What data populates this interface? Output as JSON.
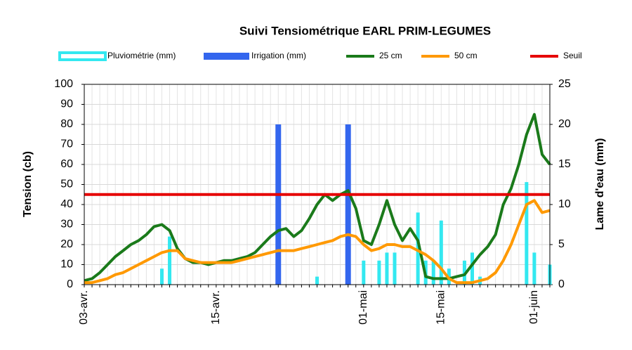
{
  "chart_data": {
    "type": "combo",
    "title": "Suivi Tensiométrique EARL PRIM-LEGUMES",
    "y_label": "Tension (cb)",
    "y2_label": "Lame d'eau (mm)",
    "categories": [
      "03-avr.",
      null,
      null,
      null,
      null,
      null,
      null,
      null,
      null,
      null,
      null,
      null,
      null,
      null,
      null,
      null,
      null,
      "15-avr.",
      null,
      null,
      null,
      null,
      null,
      null,
      null,
      null,
      null,
      null,
      null,
      null,
      null,
      null,
      null,
      null,
      null,
      null,
      "01-mai",
      null,
      null,
      null,
      null,
      null,
      null,
      null,
      null,
      null,
      "15-mai",
      null,
      null,
      null,
      null,
      null,
      null,
      null,
      null,
      null,
      null,
      null,
      "01-juin",
      null,
      null
    ],
    "ylim": [
      0,
      100
    ],
    "yticks": [
      0,
      10,
      20,
      30,
      40,
      50,
      60,
      70,
      80,
      90,
      100
    ],
    "y2lim": [
      0,
      25
    ],
    "y2ticks": [
      0,
      5,
      10,
      15,
      20,
      25
    ],
    "grid": true,
    "series": [
      {
        "name": "Pluviométrie (mm)",
        "type": "bar",
        "axis": "y2",
        "color": "#33e8f0",
        "values": [
          0,
          0,
          0,
          0,
          0,
          0,
          0,
          0,
          0,
          0,
          2,
          6,
          0,
          0,
          0,
          0,
          0,
          0,
          0,
          0,
          0,
          0,
          0,
          0,
          0,
          0,
          0,
          0,
          0,
          0,
          1,
          0,
          0,
          0,
          0,
          0,
          3,
          0,
          3,
          4,
          4,
          0,
          0,
          9,
          3,
          3,
          8,
          2,
          0,
          3,
          4,
          1,
          0,
          0,
          0,
          0,
          0,
          12.8,
          4,
          0,
          2.5
        ]
      },
      {
        "name": "Irrigation (mm)",
        "type": "bar",
        "axis": "y2",
        "color": "#3366ee",
        "values": [
          0,
          0,
          0,
          0,
          0,
          0,
          0,
          0,
          0,
          0,
          0,
          0,
          0,
          0,
          0,
          0,
          0,
          0,
          0,
          0,
          0,
          0,
          0,
          0,
          0,
          20,
          0,
          0,
          0,
          0,
          0,
          0,
          0,
          0,
          20,
          0,
          0,
          0,
          0,
          0,
          0,
          0,
          0,
          0,
          0,
          0,
          0,
          0,
          0,
          0,
          0,
          0,
          0,
          0,
          0,
          0,
          0,
          0,
          0,
          0,
          0
        ]
      },
      {
        "name": "25 cm",
        "type": "line",
        "color": "#1a7a1a",
        "values": [
          2,
          3,
          6,
          10,
          14,
          17,
          20,
          22,
          25,
          29,
          30,
          27,
          18,
          13,
          11,
          11,
          10,
          11,
          12,
          12,
          13,
          14,
          16,
          20,
          24,
          27,
          28,
          24,
          27,
          33,
          40,
          45,
          42,
          45,
          47,
          38,
          22,
          20,
          30,
          42,
          30,
          22,
          28,
          22,
          4,
          3,
          3,
          3,
          4,
          5,
          10,
          15,
          19,
          25,
          40,
          48,
          60,
          75,
          85,
          65,
          60
        ]
      },
      {
        "name": "50 cm",
        "type": "line",
        "color": "#ff9900",
        "values": [
          1,
          1,
          2,
          3,
          5,
          6,
          8,
          10,
          12,
          14,
          16,
          17,
          17,
          13,
          12,
          11,
          11,
          11,
          11,
          11,
          12,
          13,
          14,
          15,
          16,
          17,
          17,
          17,
          18,
          19,
          20,
          21,
          22,
          24,
          25,
          24,
          20,
          17,
          18,
          20,
          20,
          19,
          19,
          17,
          15,
          12,
          8,
          3,
          1,
          1,
          1,
          2,
          3,
          6,
          12,
          20,
          30,
          40,
          42,
          36,
          37
        ]
      },
      {
        "name": "Seuil",
        "type": "line",
        "color": "#e60000",
        "values": [
          45,
          45,
          45,
          45,
          45,
          45,
          45,
          45,
          45,
          45,
          45,
          45,
          45,
          45,
          45,
          45,
          45,
          45,
          45,
          45,
          45,
          45,
          45,
          45,
          45,
          45,
          45,
          45,
          45,
          45,
          45,
          45,
          45,
          45,
          45,
          45,
          45,
          45,
          45,
          45,
          45,
          45,
          45,
          45,
          45,
          45,
          45,
          45,
          45,
          45,
          45,
          45,
          45,
          45,
          45,
          45,
          45,
          45,
          45,
          45,
          45
        ]
      }
    ]
  }
}
